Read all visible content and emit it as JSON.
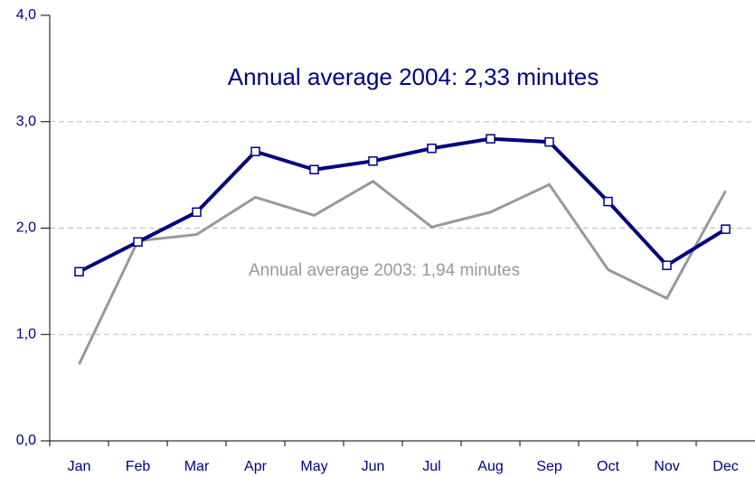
{
  "chart_data": {
    "type": "line",
    "annotations": [
      "Annual average 2004: 2,33 minutes",
      "Annual average 2003: 1,94 minutes"
    ],
    "categories": [
      "Jan",
      "Feb",
      "Mar",
      "Apr",
      "May",
      "Jun",
      "Jul",
      "Aug",
      "Sep",
      "Oct",
      "Nov",
      "Dec"
    ],
    "series": [
      {
        "color": "#000080",
        "values": [
          1.59,
          1.87,
          2.15,
          2.72,
          2.55,
          2.63,
          2.75,
          2.84,
          2.81,
          2.25,
          1.65,
          1.99
        ]
      },
      {
        "color": "#999999",
        "values": [
          0.72,
          1.88,
          1.94,
          2.29,
          2.12,
          2.44,
          2.01,
          2.15,
          2.41,
          1.61,
          1.34,
          2.35
        ]
      }
    ],
    "ylim": [
      0,
      4
    ],
    "yticks": [
      {
        "value": 0,
        "label": "0,0"
      },
      {
        "value": 1,
        "label": "1,0"
      },
      {
        "value": 2,
        "label": "2,0"
      },
      {
        "value": 3,
        "label": "3,0"
      },
      {
        "value": 4,
        "label": "4,0"
      }
    ],
    "grid": true
  }
}
